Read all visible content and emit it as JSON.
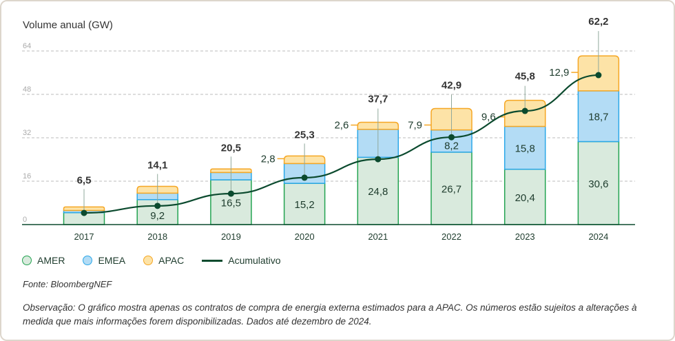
{
  "chart_data": {
    "type": "bar",
    "stacked": true,
    "ylabel": "Volume anual (GW)",
    "ylim": [
      0,
      64
    ],
    "yticks": [
      0,
      16,
      32,
      48,
      64
    ],
    "grid": true,
    "categories": [
      "2017",
      "2018",
      "2019",
      "2020",
      "2021",
      "2022",
      "2023",
      "2024"
    ],
    "series": [
      {
        "name": "AMER",
        "color": "#22a350",
        "fill": "#d9eadd",
        "values": [
          4.4,
          9.2,
          16.5,
          15.2,
          24.8,
          26.7,
          20.4,
          30.6
        ]
      },
      {
        "name": "EMEA",
        "color": "#2aa7e8",
        "fill": "#b3dcf5",
        "values": [
          0.8,
          2.4,
          2.7,
          7.3,
          10.3,
          8.2,
          15.8,
          18.7
        ]
      },
      {
        "name": "APAC",
        "color": "#f5a623",
        "fill": "#fde3a7",
        "values": [
          1.3,
          2.5,
          1.3,
          2.8,
          2.6,
          7.9,
          9.6,
          12.9
        ]
      }
    ],
    "line_series": {
      "name": "Acumulativo",
      "color": "#0b4a2e",
      "values": [
        4.3,
        6.9,
        11.4,
        17.3,
        24.1,
        32.2,
        41.9,
        55.1
      ]
    },
    "totals": [
      "6,5",
      "14,1",
      "20,5",
      "25,3",
      "37,7",
      "42,9",
      "45,8",
      "62,2"
    ],
    "amer_labels": [
      "",
      "9,2",
      "16,5",
      "15,2",
      "24,8",
      "26,7",
      "20,4",
      "30,6"
    ],
    "emea_labels": [
      "",
      "",
      "",
      "",
      "",
      "8,2",
      "15,8",
      "18,7"
    ],
    "apac_labels": [
      "",
      "",
      "",
      "2,8",
      "2,6",
      "7,9",
      "9,6",
      "12,9"
    ],
    "legend": [
      "AMER",
      "EMEA",
      "APAC",
      "Acumulativo"
    ],
    "legend_placement": "bottom-left"
  },
  "source": "Fonte: BloombergNEF",
  "note": "Observação: O gráfico mostra apenas os contratos de compra de energia externa estimados para a APAC. Os números estão sujeitos a alterações à medida que mais informações forem disponibilizadas. Dados até dezembro de 2024."
}
